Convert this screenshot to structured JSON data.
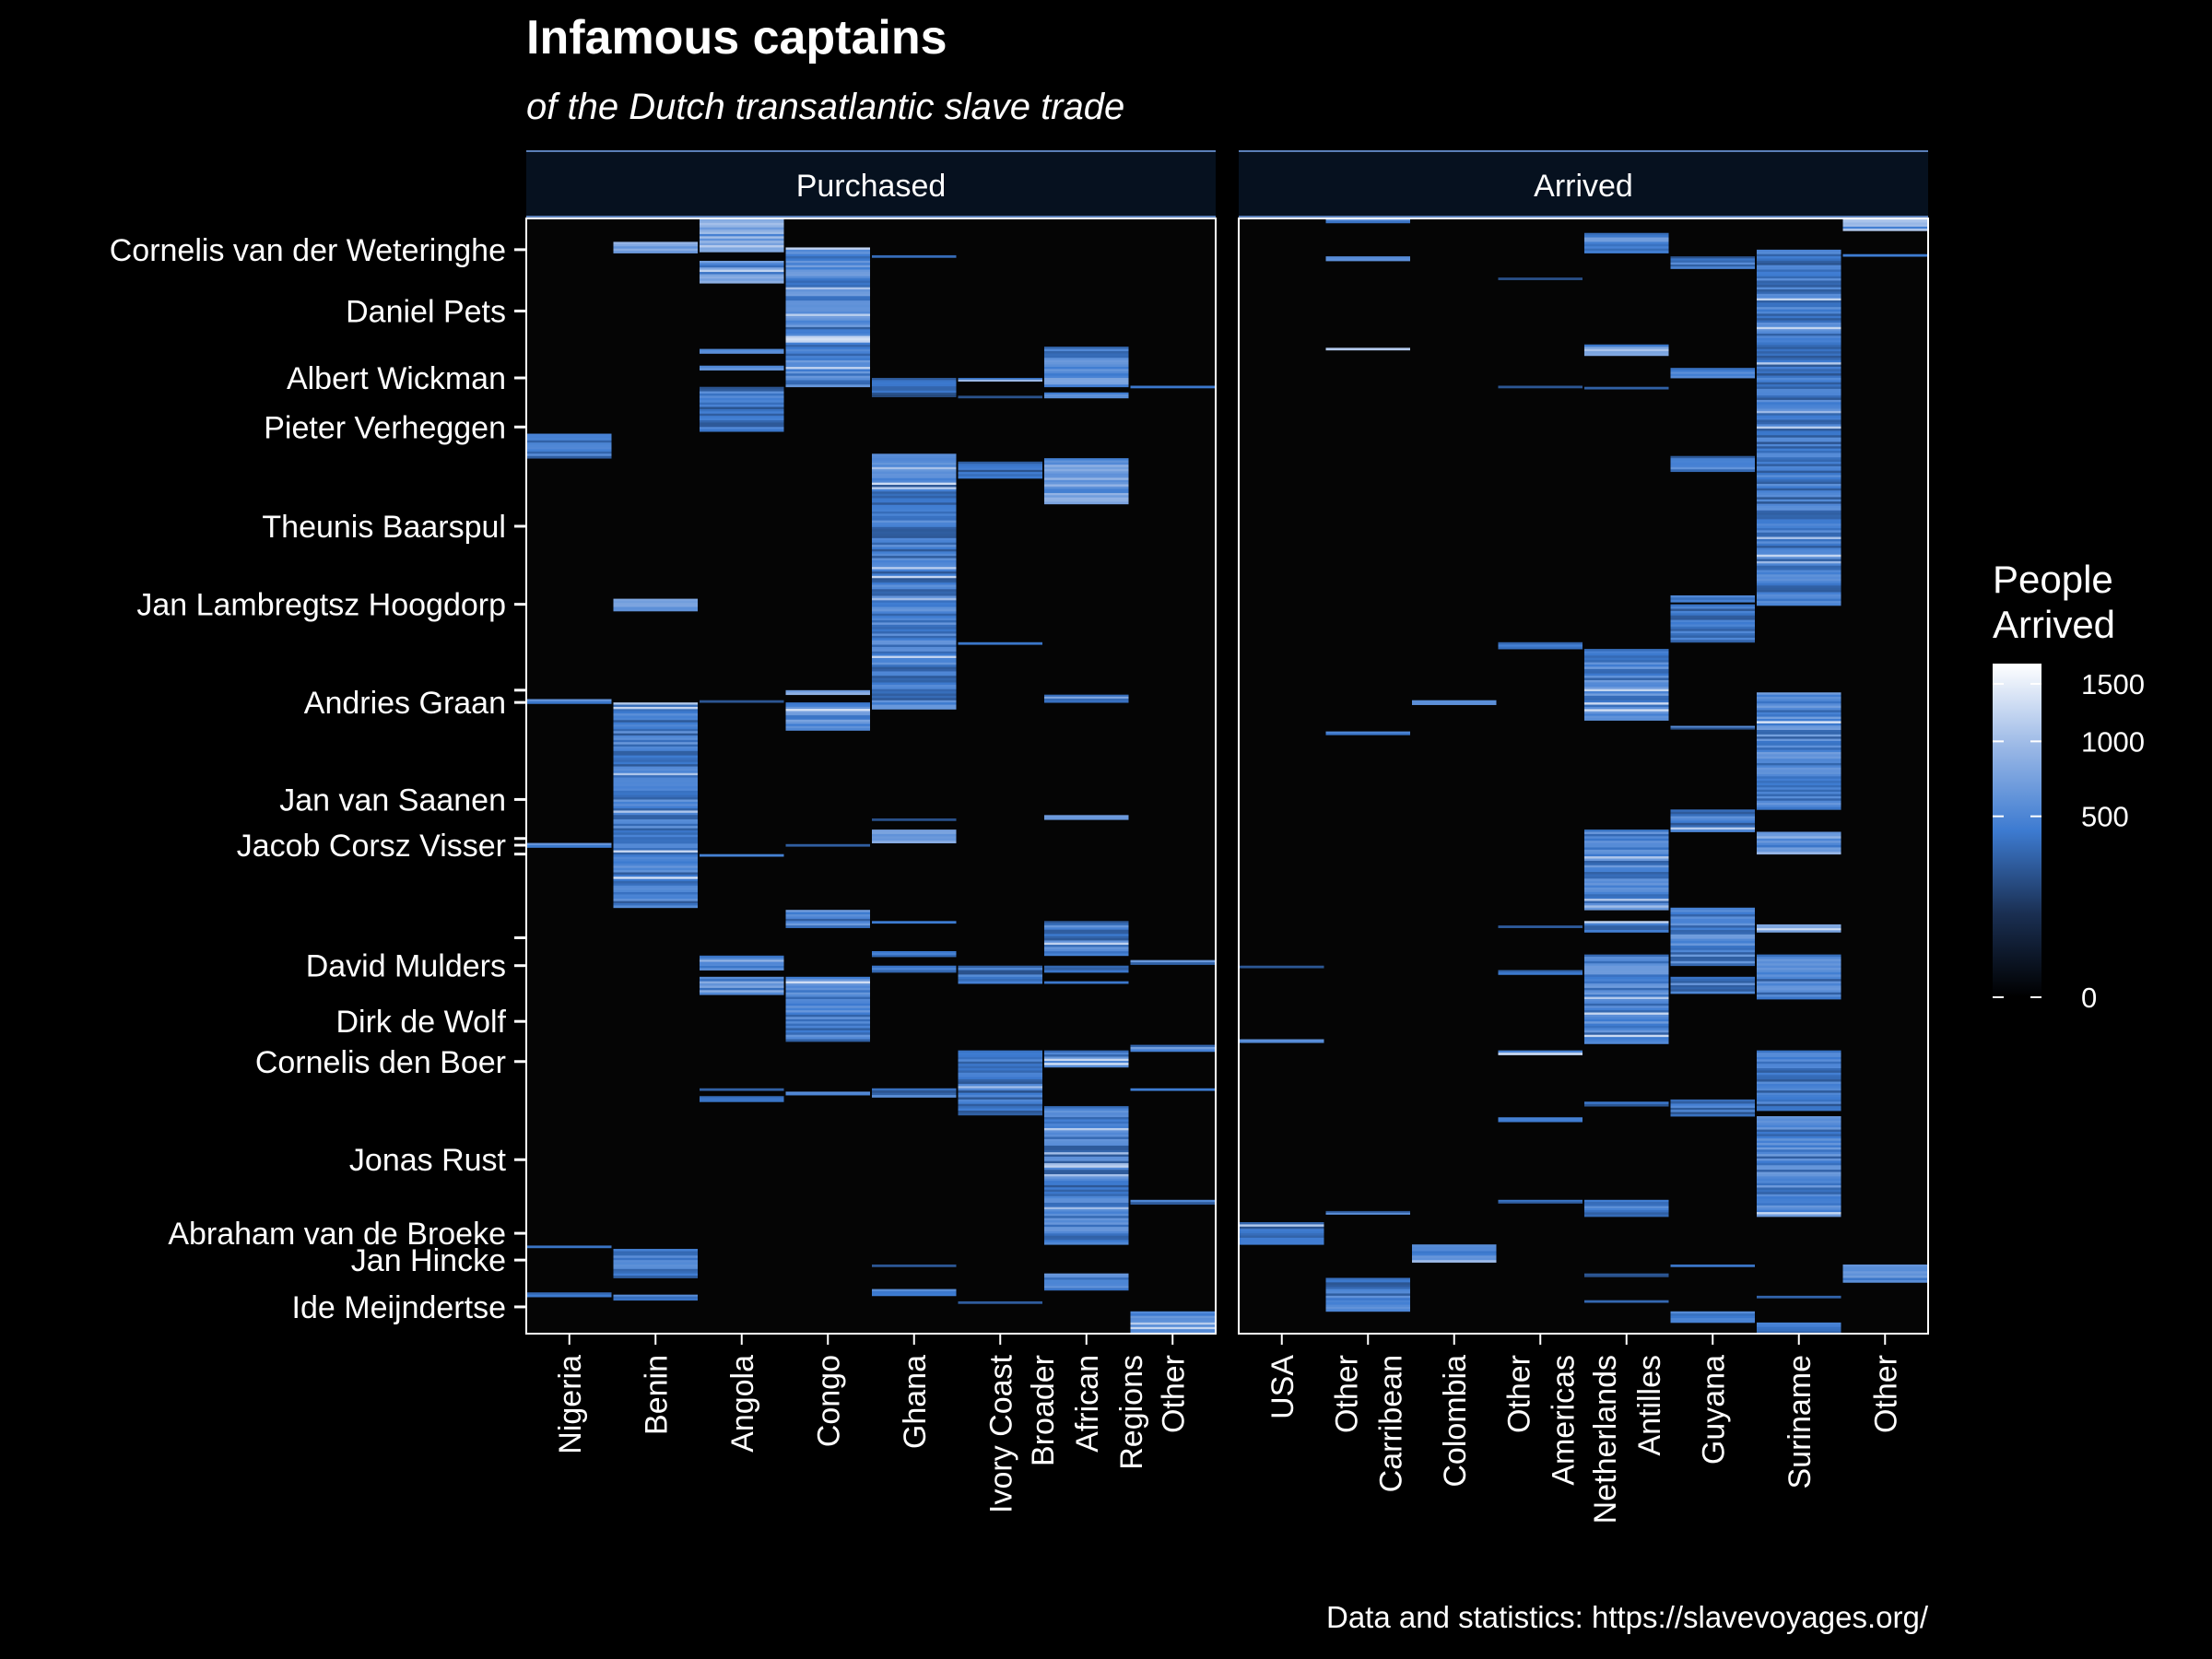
{
  "chart_data": {
    "type": "heatmap",
    "title": "Infamous captains",
    "subtitle": "of the Dutch transatlantic slave trade",
    "caption": "Data and statistics: https://slavevoyages.org/",
    "colors": {
      "background": "#000000",
      "panel": "#050505",
      "strip": "#06111f",
      "strip_border": "#5a7fb8",
      "low": "#0a0f18",
      "mid": "#3d7bd1",
      "high": "#ffffff"
    },
    "legend": {
      "title_lines": [
        "People",
        "Arrived"
      ],
      "breaks": [
        0,
        500,
        1000,
        1500
      ],
      "max": 1700,
      "scale": "sqrt",
      "position": "right"
    },
    "y_range": [
      0,
      100
    ],
    "captains": [
      {
        "name": "Cornelis van der Weteringhe",
        "y": 2.8
      },
      {
        "name": "Daniel Pets",
        "y": 8.3
      },
      {
        "name": "Albert Wickman",
        "y": 14.3
      },
      {
        "name": "Pieter Verheggen",
        "y": 18.7
      },
      {
        "name": "Theunis Baarspul",
        "y": 27.6
      },
      {
        "name": "Jan Lambregtsz Hoogdorp",
        "y": 34.6
      },
      {
        "name": "Andries Graan",
        "y": 43.4
      },
      {
        "name": "Jan van Saanen",
        "y": 52.1
      },
      {
        "name": "Jacob Corsz Visser",
        "y": 56.2
      },
      {
        "name": "David Mulders",
        "y": 67.0
      },
      {
        "name": "Dirk de Wolf",
        "y": 72.0
      },
      {
        "name": "Cornelis den Boer",
        "y": 75.6
      },
      {
        "name": "Jonas Rust",
        "y": 84.4
      },
      {
        "name": "Abraham van de Broeke",
        "y": 91.0
      },
      {
        "name": "Jan Hincke",
        "y": 93.4
      },
      {
        "name": "Ide Meijndertse",
        "y": 97.6
      }
    ],
    "extra_ticks": [
      42.3,
      55.6,
      57.0,
      64.5
    ],
    "panels": [
      {
        "name": "Purchased",
        "columns": [
          "Nigeria",
          "Benin",
          "Angola",
          "Congo",
          "Ghana",
          "Ivory Coast",
          "Broader African Regions",
          "Other"
        ],
        "column_labels": [
          [
            "Nigeria"
          ],
          [
            "Benin"
          ],
          [
            "Angola"
          ],
          [
            "Congo"
          ],
          [
            "Ghana"
          ],
          [
            "Ivory Coast"
          ],
          [
            "Broader",
            "African",
            "Regions"
          ],
          [
            "Other"
          ]
        ],
        "blocks": [
          {
            "col": 0,
            "y0": 19.3,
            "y1": 21.5,
            "avg": 420
          },
          {
            "col": 0,
            "y0": 43.1,
            "y1": 43.5,
            "avg": 500
          },
          {
            "col": 0,
            "y0": 56.0,
            "y1": 56.4,
            "avg": 450
          },
          {
            "col": 0,
            "y0": 92.1,
            "y1": 92.3,
            "avg": 300
          },
          {
            "col": 0,
            "y0": 96.3,
            "y1": 96.7,
            "avg": 480
          },
          {
            "col": 1,
            "y0": 2.1,
            "y1": 3.1,
            "avg": 650
          },
          {
            "col": 1,
            "y0": 34.1,
            "y1": 35.2,
            "avg": 650
          },
          {
            "col": 1,
            "y0": 43.4,
            "y1": 61.8,
            "avg": 450
          },
          {
            "col": 1,
            "y0": 92.4,
            "y1": 95.0,
            "avg": 450
          },
          {
            "col": 1,
            "y0": 96.5,
            "y1": 97.0,
            "avg": 500
          },
          {
            "col": 2,
            "y0": 0.0,
            "y1": 3.0,
            "avg": 800
          },
          {
            "col": 2,
            "y0": 3.8,
            "y1": 5.8,
            "avg": 600
          },
          {
            "col": 2,
            "y0": 11.7,
            "y1": 12.1,
            "avg": 450
          },
          {
            "col": 2,
            "y0": 13.2,
            "y1": 13.6,
            "avg": 450
          },
          {
            "col": 2,
            "y0": 15.1,
            "y1": 19.1,
            "avg": 400
          },
          {
            "col": 2,
            "y0": 43.2,
            "y1": 43.4,
            "avg": 400
          },
          {
            "col": 2,
            "y0": 57.0,
            "y1": 57.2,
            "avg": 400
          },
          {
            "col": 2,
            "y0": 66.1,
            "y1": 67.4,
            "avg": 700
          },
          {
            "col": 2,
            "y0": 68.0,
            "y1": 69.6,
            "avg": 600
          },
          {
            "col": 2,
            "y0": 78.0,
            "y1": 78.2,
            "avg": 350
          },
          {
            "col": 2,
            "y0": 78.7,
            "y1": 79.2,
            "avg": 400
          },
          {
            "col": 3,
            "y0": 2.6,
            "y1": 15.1,
            "avg": 500
          },
          {
            "col": 3,
            "y0": 42.3,
            "y1": 42.7,
            "avg": 650
          },
          {
            "col": 3,
            "y0": 43.4,
            "y1": 45.9,
            "avg": 550
          },
          {
            "col": 3,
            "y0": 56.1,
            "y1": 56.3,
            "avg": 350
          },
          {
            "col": 3,
            "y0": 62.0,
            "y1": 63.6,
            "avg": 500
          },
          {
            "col": 3,
            "y0": 68.0,
            "y1": 73.8,
            "avg": 450
          },
          {
            "col": 3,
            "y0": 78.3,
            "y1": 78.6,
            "avg": 400
          },
          {
            "col": 4,
            "y0": 3.3,
            "y1": 3.5,
            "avg": 400
          },
          {
            "col": 4,
            "y0": 14.3,
            "y1": 16.0,
            "avg": 300
          },
          {
            "col": 4,
            "y0": 21.1,
            "y1": 44.0,
            "avg": 450
          },
          {
            "col": 4,
            "y0": 53.8,
            "y1": 54.0,
            "avg": 200
          },
          {
            "col": 4,
            "y0": 54.8,
            "y1": 56.0,
            "avg": 600
          },
          {
            "col": 4,
            "y0": 63.0,
            "y1": 63.2,
            "avg": 400
          },
          {
            "col": 4,
            "y0": 65.7,
            "y1": 66.2,
            "avg": 350
          },
          {
            "col": 4,
            "y0": 67.0,
            "y1": 67.6,
            "avg": 350
          },
          {
            "col": 4,
            "y0": 78.0,
            "y1": 78.8,
            "avg": 400
          },
          {
            "col": 4,
            "y0": 93.8,
            "y1": 94.0,
            "avg": 400
          },
          {
            "col": 4,
            "y0": 96.0,
            "y1": 96.6,
            "avg": 400
          },
          {
            "col": 5,
            "y0": 14.3,
            "y1": 14.6,
            "avg": 400
          },
          {
            "col": 5,
            "y0": 15.9,
            "y1": 16.1,
            "avg": 300
          },
          {
            "col": 5,
            "y0": 21.8,
            "y1": 23.3,
            "avg": 380
          },
          {
            "col": 5,
            "y0": 38.0,
            "y1": 38.2,
            "avg": 350
          },
          {
            "col": 5,
            "y0": 67.0,
            "y1": 68.6,
            "avg": 400
          },
          {
            "col": 5,
            "y0": 74.6,
            "y1": 80.4,
            "avg": 380
          },
          {
            "col": 5,
            "y0": 97.1,
            "y1": 97.3,
            "avg": 300
          },
          {
            "col": 6,
            "y0": 11.5,
            "y1": 15.1,
            "avg": 550
          },
          {
            "col": 6,
            "y0": 15.6,
            "y1": 16.1,
            "avg": 450
          },
          {
            "col": 6,
            "y0": 21.5,
            "y1": 25.6,
            "avg": 650
          },
          {
            "col": 6,
            "y0": 42.7,
            "y1": 43.4,
            "avg": 550
          },
          {
            "col": 6,
            "y0": 53.5,
            "y1": 53.9,
            "avg": 500
          },
          {
            "col": 6,
            "y0": 63.0,
            "y1": 66.1,
            "avg": 450
          },
          {
            "col": 6,
            "y0": 67.0,
            "y1": 67.6,
            "avg": 400
          },
          {
            "col": 6,
            "y0": 68.4,
            "y1": 68.6,
            "avg": 350
          },
          {
            "col": 6,
            "y0": 74.6,
            "y1": 76.1,
            "avg": 500
          },
          {
            "col": 6,
            "y0": 79.6,
            "y1": 92.0,
            "avg": 450
          },
          {
            "col": 6,
            "y0": 94.6,
            "y1": 96.1,
            "avg": 550
          },
          {
            "col": 7,
            "y0": 15.0,
            "y1": 15.2,
            "avg": 350
          },
          {
            "col": 7,
            "y0": 66.5,
            "y1": 66.9,
            "avg": 450
          },
          {
            "col": 7,
            "y0": 74.1,
            "y1": 74.7,
            "avg": 500
          },
          {
            "col": 7,
            "y0": 78.0,
            "y1": 78.2,
            "avg": 350
          },
          {
            "col": 7,
            "y0": 88.0,
            "y1": 88.4,
            "avg": 400
          },
          {
            "col": 7,
            "y0": 98.0,
            "y1": 100.0,
            "avg": 450
          }
        ]
      },
      {
        "name": "Arrived",
        "columns": [
          "USA",
          "Other Carribean",
          "Colombia",
          "Other Americas",
          "Netherlands Antilles",
          "Guyana",
          "Suriname",
          "Other"
        ],
        "column_labels": [
          [
            "USA"
          ],
          [
            "Other",
            "Carribean"
          ],
          [
            "Colombia"
          ],
          [
            "Other",
            "Americas"
          ],
          [
            "Netherlands",
            "Antilles"
          ],
          [
            "Guyana"
          ],
          [
            "Suriname"
          ],
          [
            "Other"
          ]
        ],
        "blocks": [
          {
            "col": 0,
            "y0": 67.0,
            "y1": 67.2,
            "avg": 250
          },
          {
            "col": 0,
            "y0": 73.6,
            "y1": 73.9,
            "avg": 450
          },
          {
            "col": 0,
            "y0": 90.0,
            "y1": 92.0,
            "avg": 350
          },
          {
            "col": 1,
            "y0": 0.0,
            "y1": 0.4,
            "avg": 500
          },
          {
            "col": 1,
            "y0": 3.4,
            "y1": 3.8,
            "avg": 400
          },
          {
            "col": 1,
            "y0": 11.6,
            "y1": 11.8,
            "avg": 350
          },
          {
            "col": 1,
            "y0": 46.0,
            "y1": 46.3,
            "avg": 450
          },
          {
            "col": 1,
            "y0": 89.0,
            "y1": 89.3,
            "avg": 400
          },
          {
            "col": 1,
            "y0": 95.0,
            "y1": 98.0,
            "avg": 420
          },
          {
            "col": 2,
            "y0": 43.2,
            "y1": 43.6,
            "avg": 550
          },
          {
            "col": 2,
            "y0": 92.0,
            "y1": 93.6,
            "avg": 500
          },
          {
            "col": 3,
            "y0": 5.3,
            "y1": 5.5,
            "avg": 300
          },
          {
            "col": 3,
            "y0": 15.0,
            "y1": 15.2,
            "avg": 300
          },
          {
            "col": 3,
            "y0": 38.0,
            "y1": 38.6,
            "avg": 380
          },
          {
            "col": 3,
            "y0": 63.4,
            "y1": 63.6,
            "avg": 300
          },
          {
            "col": 3,
            "y0": 67.4,
            "y1": 67.8,
            "avg": 400
          },
          {
            "col": 3,
            "y0": 74.6,
            "y1": 75.0,
            "avg": 380
          },
          {
            "col": 3,
            "y0": 80.6,
            "y1": 81.0,
            "avg": 380
          },
          {
            "col": 3,
            "y0": 88.0,
            "y1": 88.3,
            "avg": 350
          },
          {
            "col": 4,
            "y0": 1.3,
            "y1": 3.1,
            "avg": 500
          },
          {
            "col": 4,
            "y0": 11.3,
            "y1": 12.3,
            "avg": 550
          },
          {
            "col": 4,
            "y0": 15.1,
            "y1": 15.3,
            "avg": 350
          },
          {
            "col": 4,
            "y0": 38.6,
            "y1": 45.0,
            "avg": 500
          },
          {
            "col": 4,
            "y0": 54.8,
            "y1": 62.0,
            "avg": 480
          },
          {
            "col": 4,
            "y0": 63.0,
            "y1": 64.0,
            "avg": 500
          },
          {
            "col": 4,
            "y0": 66.0,
            "y1": 74.0,
            "avg": 480
          },
          {
            "col": 4,
            "y0": 79.2,
            "y1": 79.6,
            "avg": 400
          },
          {
            "col": 4,
            "y0": 88.0,
            "y1": 89.5,
            "avg": 450
          },
          {
            "col": 4,
            "y0": 94.6,
            "y1": 94.9,
            "avg": 400
          },
          {
            "col": 4,
            "y0": 97.0,
            "y1": 97.2,
            "avg": 300
          },
          {
            "col": 5,
            "y0": 3.4,
            "y1": 4.5,
            "avg": 400
          },
          {
            "col": 5,
            "y0": 13.4,
            "y1": 14.3,
            "avg": 400
          },
          {
            "col": 5,
            "y0": 21.3,
            "y1": 22.7,
            "avg": 450
          },
          {
            "col": 5,
            "y0": 33.8,
            "y1": 34.4,
            "avg": 450
          },
          {
            "col": 5,
            "y0": 34.6,
            "y1": 38.0,
            "avg": 380
          },
          {
            "col": 5,
            "y0": 45.5,
            "y1": 45.8,
            "avg": 400
          },
          {
            "col": 5,
            "y0": 53.0,
            "y1": 55.0,
            "avg": 420
          },
          {
            "col": 5,
            "y0": 61.8,
            "y1": 67.0,
            "avg": 480
          },
          {
            "col": 5,
            "y0": 68.0,
            "y1": 69.5,
            "avg": 450
          },
          {
            "col": 5,
            "y0": 79.0,
            "y1": 80.5,
            "avg": 400
          },
          {
            "col": 5,
            "y0": 93.8,
            "y1": 94.0,
            "avg": 350
          },
          {
            "col": 5,
            "y0": 98.0,
            "y1": 99.0,
            "avg": 400
          },
          {
            "col": 6,
            "y0": 2.8,
            "y1": 34.7,
            "avg": 420
          },
          {
            "col": 6,
            "y0": 42.5,
            "y1": 53.0,
            "avg": 500
          },
          {
            "col": 6,
            "y0": 55.0,
            "y1": 57.0,
            "avg": 650
          },
          {
            "col": 6,
            "y0": 63.3,
            "y1": 64.0,
            "avg": 550
          },
          {
            "col": 6,
            "y0": 66.0,
            "y1": 70.0,
            "avg": 450
          },
          {
            "col": 6,
            "y0": 74.6,
            "y1": 80.0,
            "avg": 400
          },
          {
            "col": 6,
            "y0": 80.5,
            "y1": 89.5,
            "avg": 480
          },
          {
            "col": 6,
            "y0": 96.6,
            "y1": 96.8,
            "avg": 350
          },
          {
            "col": 6,
            "y0": 99.0,
            "y1": 100.0,
            "avg": 500
          },
          {
            "col": 7,
            "y0": 0.0,
            "y1": 1.1,
            "avg": 800
          },
          {
            "col": 7,
            "y0": 3.2,
            "y1": 3.4,
            "avg": 450
          },
          {
            "col": 7,
            "y0": 93.8,
            "y1": 95.4,
            "avg": 480
          }
        ]
      }
    ]
  }
}
